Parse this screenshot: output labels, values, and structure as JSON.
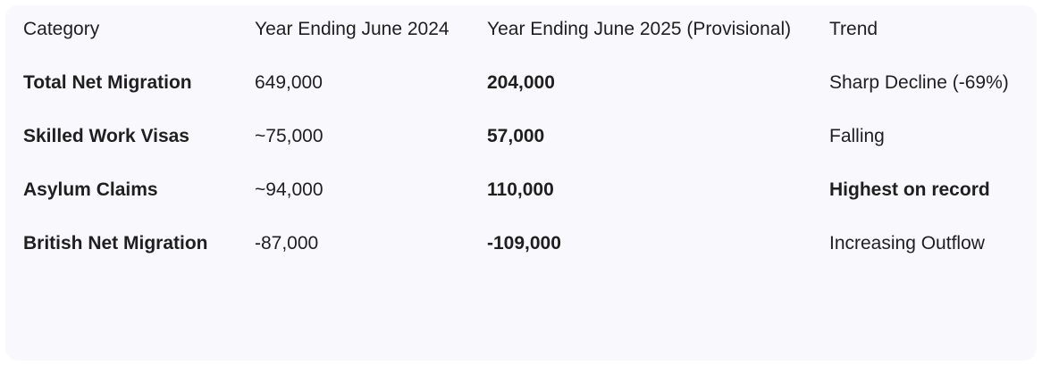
{
  "table": {
    "headers": [
      "Category",
      "Year Ending June 2024",
      "Year Ending June 2025 (Provisional)",
      "Trend"
    ],
    "rows": [
      [
        "Total Net Migration",
        "649,000",
        "204,000",
        "Sharp Decline (-69%)"
      ],
      [
        "Skilled Work Visas",
        "~75,000",
        "57,000",
        "Falling"
      ],
      [
        "Asylum Claims",
        "~94,000",
        "110,000",
        "Highest on record"
      ],
      [
        "British Net Migration",
        "-87,000",
        "-109,000",
        "Increasing Outflow"
      ]
    ]
  }
}
